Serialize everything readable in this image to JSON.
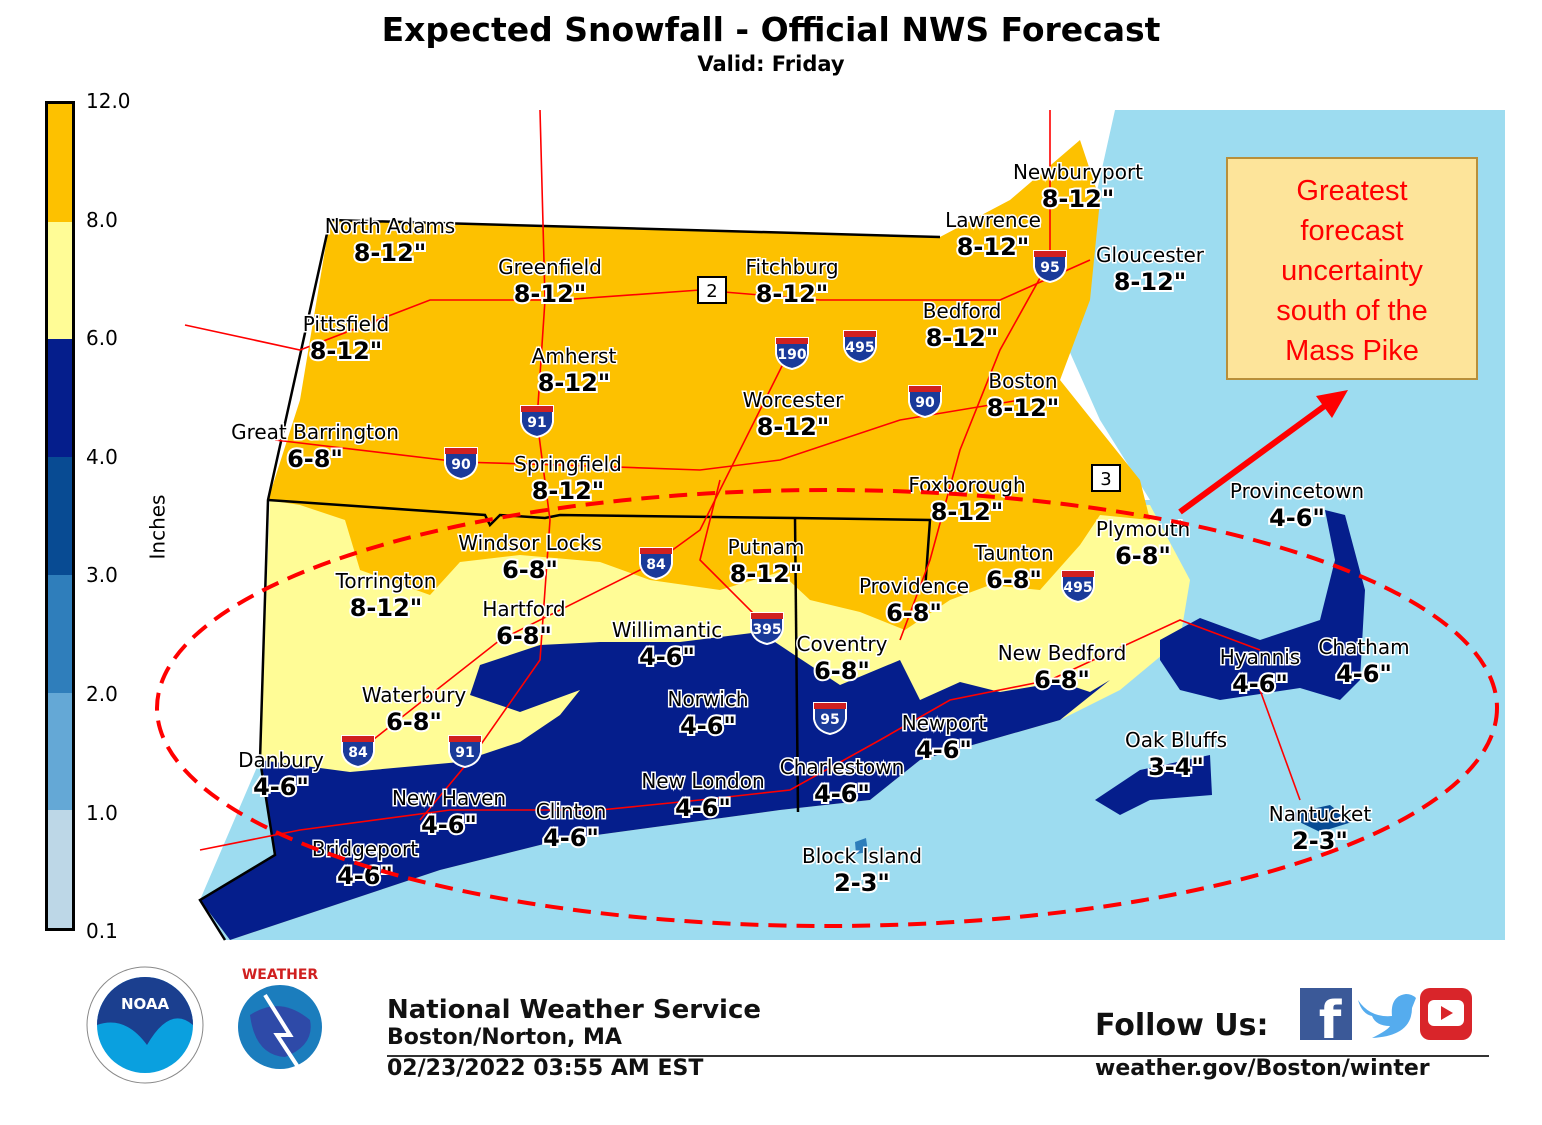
{
  "header": {
    "title": "Expected Snowfall - Official NWS Forecast",
    "subtitle": "Valid: Friday"
  },
  "legend": {
    "unit": "Inches",
    "ticks": [
      "12.0",
      "8.0",
      "6.0",
      "4.0",
      "3.0",
      "2.0",
      "1.0",
      "0.1"
    ],
    "colors": [
      "#fdc100",
      "#fffc96",
      "#051e8c",
      "#084b93",
      "#2f7ebb",
      "#64a8d6",
      "#bdd7e7"
    ]
  },
  "map_colors": {
    "ocean": "#9ddcf0",
    "land": "#ffffff",
    "roads": "#ff0000",
    "borders": "#000000"
  },
  "locations": [
    {
      "name": "North Adams",
      "range": "8-12\""
    },
    {
      "name": "Greenfield",
      "range": "8-12\""
    },
    {
      "name": "Fitchburg",
      "range": "8-12\""
    },
    {
      "name": "Newburyport",
      "range": "8-12\""
    },
    {
      "name": "Lawrence",
      "range": "8-12\""
    },
    {
      "name": "Gloucester",
      "range": "8-12\""
    },
    {
      "name": "Pittsfield",
      "range": "8-12\""
    },
    {
      "name": "Amherst",
      "range": "8-12\""
    },
    {
      "name": "Bedford",
      "range": "8-12\""
    },
    {
      "name": "Boston",
      "range": "8-12\""
    },
    {
      "name": "Worcester",
      "range": "8-12\""
    },
    {
      "name": "Great Barrington",
      "range": "6-8\""
    },
    {
      "name": "Springfield",
      "range": "8-12\""
    },
    {
      "name": "Foxborough",
      "range": "8-12\""
    },
    {
      "name": "Provincetown",
      "range": "4-6\""
    },
    {
      "name": "Plymouth",
      "range": "6-8\""
    },
    {
      "name": "Windsor Locks",
      "range": "6-8\""
    },
    {
      "name": "Putnam",
      "range": "8-12\""
    },
    {
      "name": "Torrington",
      "range": "8-12\""
    },
    {
      "name": "Taunton",
      "range": "6-8\""
    },
    {
      "name": "Providence",
      "range": "6-8\""
    },
    {
      "name": "Hartford",
      "range": "6-8\""
    },
    {
      "name": "Willimantic",
      "range": "4-6\""
    },
    {
      "name": "Coventry",
      "range": "6-8\""
    },
    {
      "name": "New Bedford",
      "range": "6-8\""
    },
    {
      "name": "Hyannis",
      "range": "4-6\""
    },
    {
      "name": "Chatham",
      "range": "4-6\""
    },
    {
      "name": "Waterbury",
      "range": "6-8\""
    },
    {
      "name": "Norwich",
      "range": "4-6\""
    },
    {
      "name": "Newport",
      "range": "4-6\""
    },
    {
      "name": "Danbury",
      "range": "4-6\""
    },
    {
      "name": "Oak Bluffs",
      "range": "3-4\""
    },
    {
      "name": "Charlestown",
      "range": "4-6\""
    },
    {
      "name": "New London",
      "range": "4-6\""
    },
    {
      "name": "New Haven",
      "range": "4-6\""
    },
    {
      "name": "Clinton",
      "range": "4-6\""
    },
    {
      "name": "Nantucket",
      "range": "2-3\""
    },
    {
      "name": "Block Island",
      "range": "2-3\""
    },
    {
      "name": "Bridgeport",
      "range": "4-6\""
    }
  ],
  "interstates": [
    "190",
    "495",
    "90",
    "91",
    "90",
    "84",
    "95",
    "495",
    "395",
    "95",
    "84",
    "91"
  ],
  "routes": [
    "2",
    "3"
  ],
  "annotation": {
    "lines": [
      "Greatest",
      "forecast",
      "uncertainty",
      "south of the",
      "Mass Pike"
    ],
    "color": "#ff0000"
  },
  "footer": {
    "org": "National Weather Service",
    "office": "Boston/Norton, MA",
    "timestamp": "02/23/2022 03:55 AM EST",
    "follow": "Follow Us:",
    "url": "weather.gov/Boston/winter",
    "logos": [
      "NOAA",
      "NATIONAL WEATHER SERVICE"
    ],
    "social": [
      "facebook-icon",
      "twitter-icon",
      "youtube-icon"
    ]
  }
}
